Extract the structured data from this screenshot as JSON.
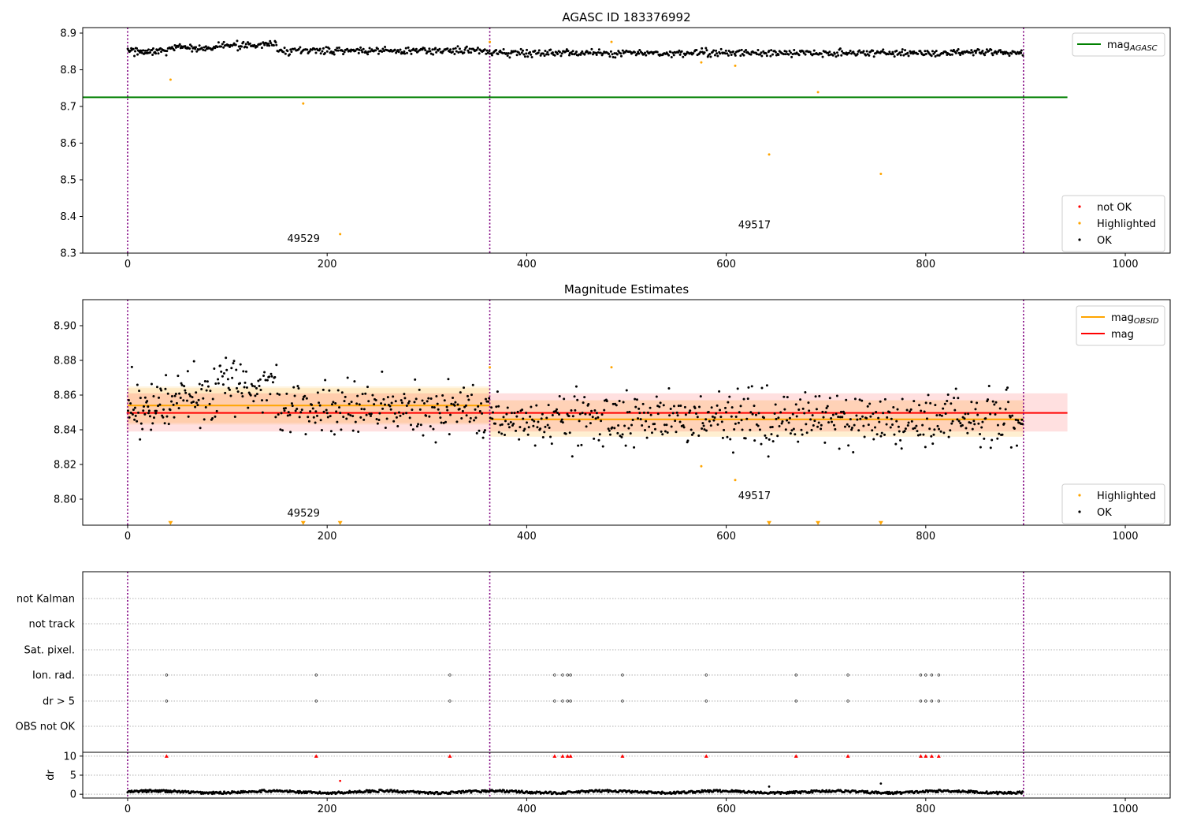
{
  "chart_data": [
    {
      "type": "scatter",
      "title": "AGASC ID 183376992",
      "xlim": [
        -45,
        1045
      ],
      "ylim": [
        8.3,
        8.915
      ],
      "xticks": [
        0,
        200,
        400,
        600,
        800,
        1000
      ],
      "xtick_labels": [
        "0",
        "200",
        "400",
        "600",
        "800",
        "1000"
      ],
      "yticks": [
        8.3,
        8.4,
        8.5,
        8.6,
        8.7,
        8.8,
        8.9
      ],
      "ytick_labels": [
        "8.3",
        "8.4",
        "8.5",
        "8.6",
        "8.7",
        "8.8",
        "8.9"
      ],
      "obs_boundaries": [
        0,
        363,
        898
      ],
      "lines": [
        {
          "name": "mag",
          "sub": "AGASC",
          "color": "#008000",
          "y": 8.725,
          "x": [
            -45,
            942
          ]
        }
      ],
      "highlighted": {
        "x": [
          43,
          176,
          213,
          363,
          485,
          575,
          609,
          643,
          692,
          755
        ],
        "y": [
          8.773,
          8.708,
          8.352,
          8.876,
          8.876,
          8.82,
          8.811,
          8.569,
          8.739,
          8.516
        ]
      },
      "ok_series": {
        "segments": [
          {
            "x0": 0,
            "x1": 40,
            "n": 50,
            "mag": 8.851,
            "amp": 0.008
          },
          {
            "x0": 40,
            "x1": 90,
            "n": 55,
            "mag": 8.858,
            "amp": 0.008
          },
          {
            "x0": 90,
            "x1": 150,
            "n": 65,
            "mag": 8.867,
            "amp": 0.008
          },
          {
            "x0": 150,
            "x1": 363,
            "n": 210,
            "mag": 8.852,
            "amp": 0.008
          },
          {
            "x0": 363,
            "x1": 898,
            "n": 520,
            "mag": 8.846,
            "amp": 0.008
          }
        ]
      },
      "legend": {
        "lines": [
          {
            "label": "mag",
            "sub": "AGASC",
            "color": "#008000"
          }
        ],
        "markers": [
          {
            "label": "not OK",
            "color": "#ff0000"
          },
          {
            "label": "Highlighted",
            "color": "#ffa500"
          },
          {
            "label": "OK",
            "color": "#000000"
          }
        ]
      },
      "annotations": [
        {
          "text": "49529",
          "x": 160,
          "y": 8.33
        },
        {
          "text": "49517",
          "x": 612,
          "y": 8.368
        }
      ]
    },
    {
      "type": "scatter",
      "title": "Magnitude Estimates",
      "xlim": [
        -45,
        1045
      ],
      "ylim": [
        8.785,
        8.915
      ],
      "xticks": [
        0,
        200,
        400,
        600,
        800,
        1000
      ],
      "xtick_labels": [
        "0",
        "200",
        "400",
        "600",
        "800",
        "1000"
      ],
      "yticks": [
        8.8,
        8.82,
        8.84,
        8.86,
        8.88,
        8.9
      ],
      "ytick_labels": [
        "8.80",
        "8.82",
        "8.84",
        "8.86",
        "8.88",
        "8.90"
      ],
      "obs_boundaries": [
        0,
        363,
        898
      ],
      "bands": [
        {
          "x": [
            0,
            363
          ],
          "y": [
            8.844,
            8.865
          ],
          "color": "#ffa500",
          "opacity": 0.12
        },
        {
          "x": [
            0,
            363
          ],
          "y": [
            8.843,
            8.864
          ],
          "color": "#ffa500",
          "opacity": 0.12
        },
        {
          "x": [
            363,
            898
          ],
          "y": [
            8.836,
            8.857
          ],
          "color": "#ffa500",
          "opacity": 0.18
        },
        {
          "x": [
            -1,
            942
          ],
          "y": [
            8.839,
            8.861
          ],
          "color": "#ff0000",
          "opacity": 0.12
        }
      ],
      "lines": [
        {
          "name": "mag",
          "sub": "OBSID",
          "color": "#ffa500",
          "y": 8.854,
          "x": [
            0,
            363
          ]
        },
        {
          "name": "mag",
          "sub": "OBSID",
          "color": "#ffa500",
          "y": 8.846,
          "x": [
            363,
            898
          ]
        },
        {
          "name": "mag",
          "sub": "",
          "color": "#ff0000",
          "y": 8.8497,
          "x": [
            -1,
            942
          ]
        }
      ],
      "highlighted": {
        "x": [
          363,
          485,
          575,
          609
        ],
        "y": [
          8.876,
          8.876,
          8.819,
          8.811
        ]
      },
      "clipped_markers": {
        "x": [
          43,
          176,
          213,
          643,
          692,
          755
        ],
        "y": 8.786
      },
      "ok_series": {
        "segments": [
          {
            "x0": 0,
            "x1": 40,
            "n": 50,
            "mag": 8.851,
            "amp": 0.012
          },
          {
            "x0": 40,
            "x1": 90,
            "n": 55,
            "mag": 8.858,
            "amp": 0.012
          },
          {
            "x0": 90,
            "x1": 150,
            "n": 65,
            "mag": 8.867,
            "amp": 0.012
          },
          {
            "x0": 150,
            "x1": 363,
            "n": 210,
            "mag": 8.852,
            "amp": 0.012
          },
          {
            "x0": 363,
            "x1": 898,
            "n": 520,
            "mag": 8.846,
            "amp": 0.012
          }
        ]
      },
      "legend": {
        "lines": [
          {
            "label": "mag",
            "sub": "OBSID",
            "color": "#ffa500"
          },
          {
            "label": "mag",
            "sub": "",
            "color": "#ff0000"
          }
        ],
        "markers": [
          {
            "label": "Highlighted",
            "color": "#ffa500"
          },
          {
            "label": "OK",
            "color": "#000000"
          }
        ]
      },
      "annotations": [
        {
          "text": "49529",
          "x": 160,
          "y": 8.79
        },
        {
          "text": "49517",
          "x": 612,
          "y": 8.8
        }
      ]
    },
    {
      "type": "scatter",
      "title": "",
      "xlim": [
        -45,
        1045
      ],
      "obs_boundaries": [
        0,
        363,
        898
      ],
      "categories": [
        "not Kalman",
        "not track",
        "Sat. pixel.",
        "Ion. rad.",
        "dr > 5",
        "OBS not OK"
      ],
      "flagged": {
        "not Kalman": [],
        "not track": [],
        "Sat. pixel.": [],
        "Ion. rad.": [
          39,
          189,
          323,
          428,
          436,
          441,
          444,
          496,
          580,
          670,
          722,
          795,
          800,
          806,
          813
        ],
        "dr > 5": [
          39,
          189,
          323,
          428,
          436,
          441,
          444,
          496,
          580,
          670,
          722,
          795,
          800,
          806,
          813
        ],
        "OBS not OK": []
      }
    },
    {
      "type": "scatter",
      "title": "",
      "ylabel": "dr",
      "xlim": [
        -45,
        1045
      ],
      "ylim": [
        -1,
        11
      ],
      "xticks": [
        0,
        200,
        400,
        600,
        800,
        1000
      ],
      "xtick_labels": [
        "0",
        "200",
        "400",
        "600",
        "800",
        "1000"
      ],
      "yticks": [
        0,
        5,
        10
      ],
      "ytick_labels": [
        "0",
        "5",
        "10"
      ],
      "obs_boundaries": [
        0,
        363,
        898
      ],
      "ok_baseline": {
        "x0": 0,
        "x1": 898,
        "n": 900,
        "mean": 0.6,
        "amp": 0.3
      },
      "clipped_points": {
        "x": [
          39,
          189,
          323,
          428,
          436,
          441,
          444,
          496,
          580,
          670,
          722,
          795,
          800,
          806,
          813
        ],
        "y": 10
      },
      "outliers_red": {
        "x": [
          213
        ],
        "y": [
          3.5
        ]
      },
      "outliers_black": {
        "x": [
          643,
          755
        ],
        "y": [
          2.0,
          2.8
        ]
      }
    }
  ]
}
